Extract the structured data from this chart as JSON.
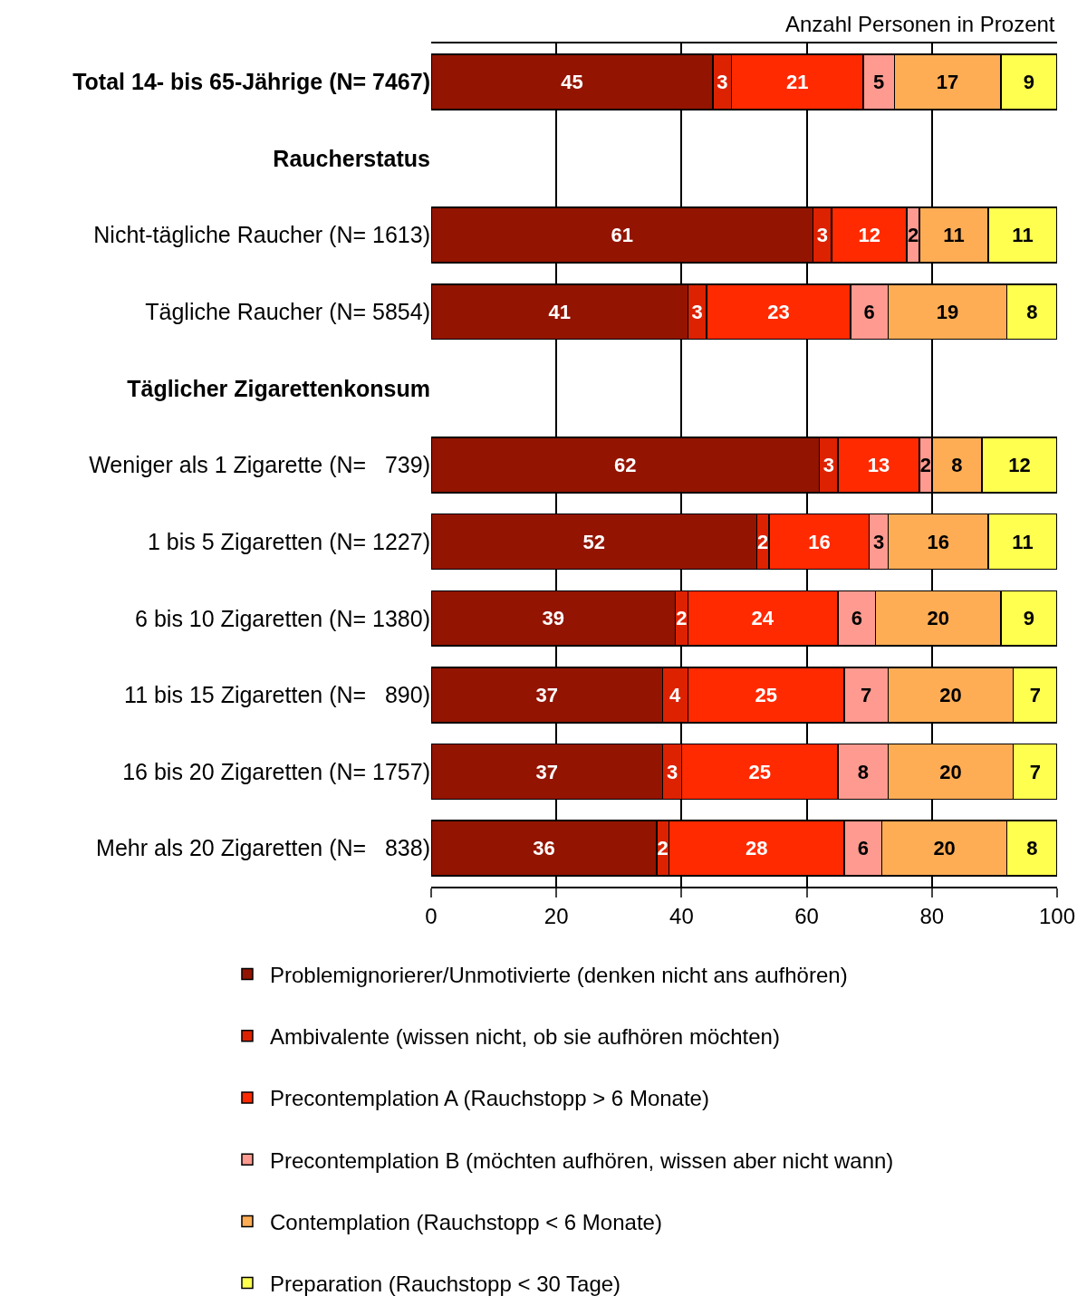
{
  "chart_data": {
    "type": "bar",
    "orientation": "horizontal",
    "stacked": true,
    "data_labels": true,
    "xlabel": "Anzahl Personen in Prozent",
    "categories": [
      "Total 14- bis 65-Jährige (N= 7467)",
      "Raucherstatus",
      "Nicht-tägliche Raucher (N= 1613)",
      "Tägliche Raucher (N= 5854)",
      "Täglicher Zigarettenkonsum",
      "Weniger als 1 Zigarette (N=   739)",
      "1 bis 5 Zigaretten (N= 1227)",
      "6 bis 10 Zigaretten (N= 1380)",
      "11 bis 15 Zigaretten (N=   890)",
      "16 bis 20 Zigaretten (N= 1757)",
      "Mehr als 20 Zigaretten (N=   838)"
    ],
    "series": [
      {
        "name": "Problemignorierer/Unmotivierte (denken nicht ans aufhören)",
        "color": "#931400",
        "values": [
          45,
          null,
          61,
          41,
          null,
          62,
          52,
          39,
          37,
          37,
          36
        ]
      },
      {
        "name": "Ambivalente (wissen nicht, ob sie aufhören möchten)",
        "color": "#dc2200",
        "values": [
          3,
          null,
          3,
          3,
          null,
          3,
          2,
          2,
          4,
          3,
          2
        ]
      },
      {
        "name": "Precontemplation A (Rauchstopp > 6 Monate)",
        "color": "#ff2a00",
        "values": [
          21,
          null,
          12,
          23,
          null,
          13,
          16,
          24,
          25,
          25,
          28
        ]
      },
      {
        "name": "Precontemplation B (möchten aufhören, wissen aber nicht wann)",
        "color": "#ff9a90",
        "values": [
          5,
          null,
          2,
          6,
          null,
          2,
          3,
          6,
          7,
          8,
          6
        ]
      },
      {
        "name": "Contemplation (Rauchstopp < 6 Monate)",
        "color": "#ffad55",
        "values": [
          17,
          null,
          11,
          19,
          null,
          8,
          16,
          20,
          20,
          20,
          20
        ]
      },
      {
        "name": "Preparation (Rauchstopp < 30 Tage)",
        "color": "#ffff50",
        "values": [
          9,
          null,
          11,
          8,
          null,
          12,
          11,
          9,
          7,
          7,
          8
        ]
      }
    ],
    "xlim": [
      0,
      100
    ],
    "xticks": [
      0,
      20,
      40,
      60,
      80,
      100
    ],
    "grid": "x",
    "legend": "bottom"
  }
}
